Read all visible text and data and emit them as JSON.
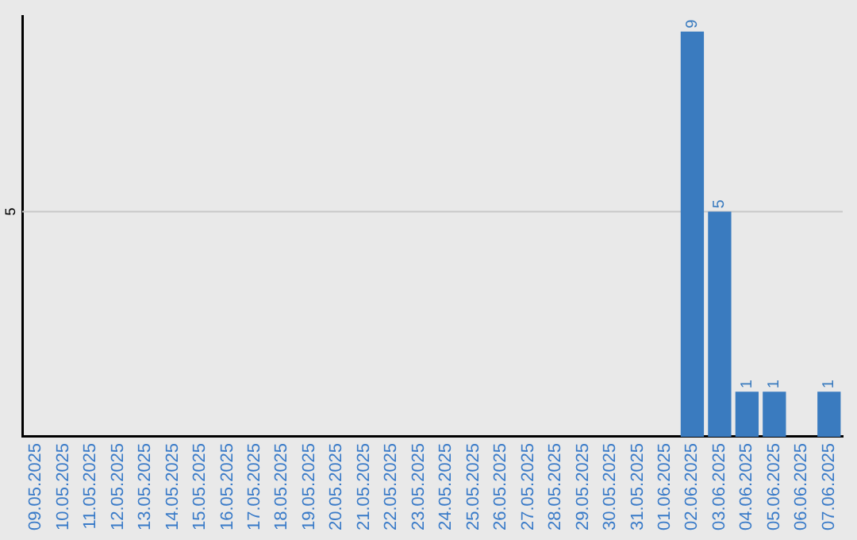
{
  "chart_data": {
    "type": "bar",
    "categories": [
      "09.05.2025",
      "10.05.2025",
      "11.05.2025",
      "12.05.2025",
      "13.05.2025",
      "14.05.2025",
      "15.05.2025",
      "16.05.2025",
      "17.05.2025",
      "18.05.2025",
      "19.05.2025",
      "20.05.2025",
      "21.05.2025",
      "22.05.2025",
      "23.05.2025",
      "24.05.2025",
      "25.05.2025",
      "26.05.2025",
      "27.05.2025",
      "28.05.2025",
      "29.05.2025",
      "30.05.2025",
      "31.05.2025",
      "01.06.2025",
      "02.06.2025",
      "03.06.2025",
      "04.06.2025",
      "05.06.2025",
      "06.06.2025",
      "07.06.2025"
    ],
    "values": [
      null,
      null,
      null,
      null,
      null,
      null,
      null,
      null,
      null,
      null,
      null,
      null,
      null,
      null,
      null,
      null,
      null,
      null,
      null,
      null,
      null,
      null,
      null,
      null,
      9,
      5,
      1,
      1,
      null,
      1
    ],
    "data_labels": true,
    "color": "#3a7bbf",
    "ylim": [
      0,
      9.35
    ],
    "ref_lines": [
      {
        "axis": "y",
        "value": 5,
        "label": "5",
        "color": "#c8c8c8"
      }
    ],
    "legend": false
  }
}
